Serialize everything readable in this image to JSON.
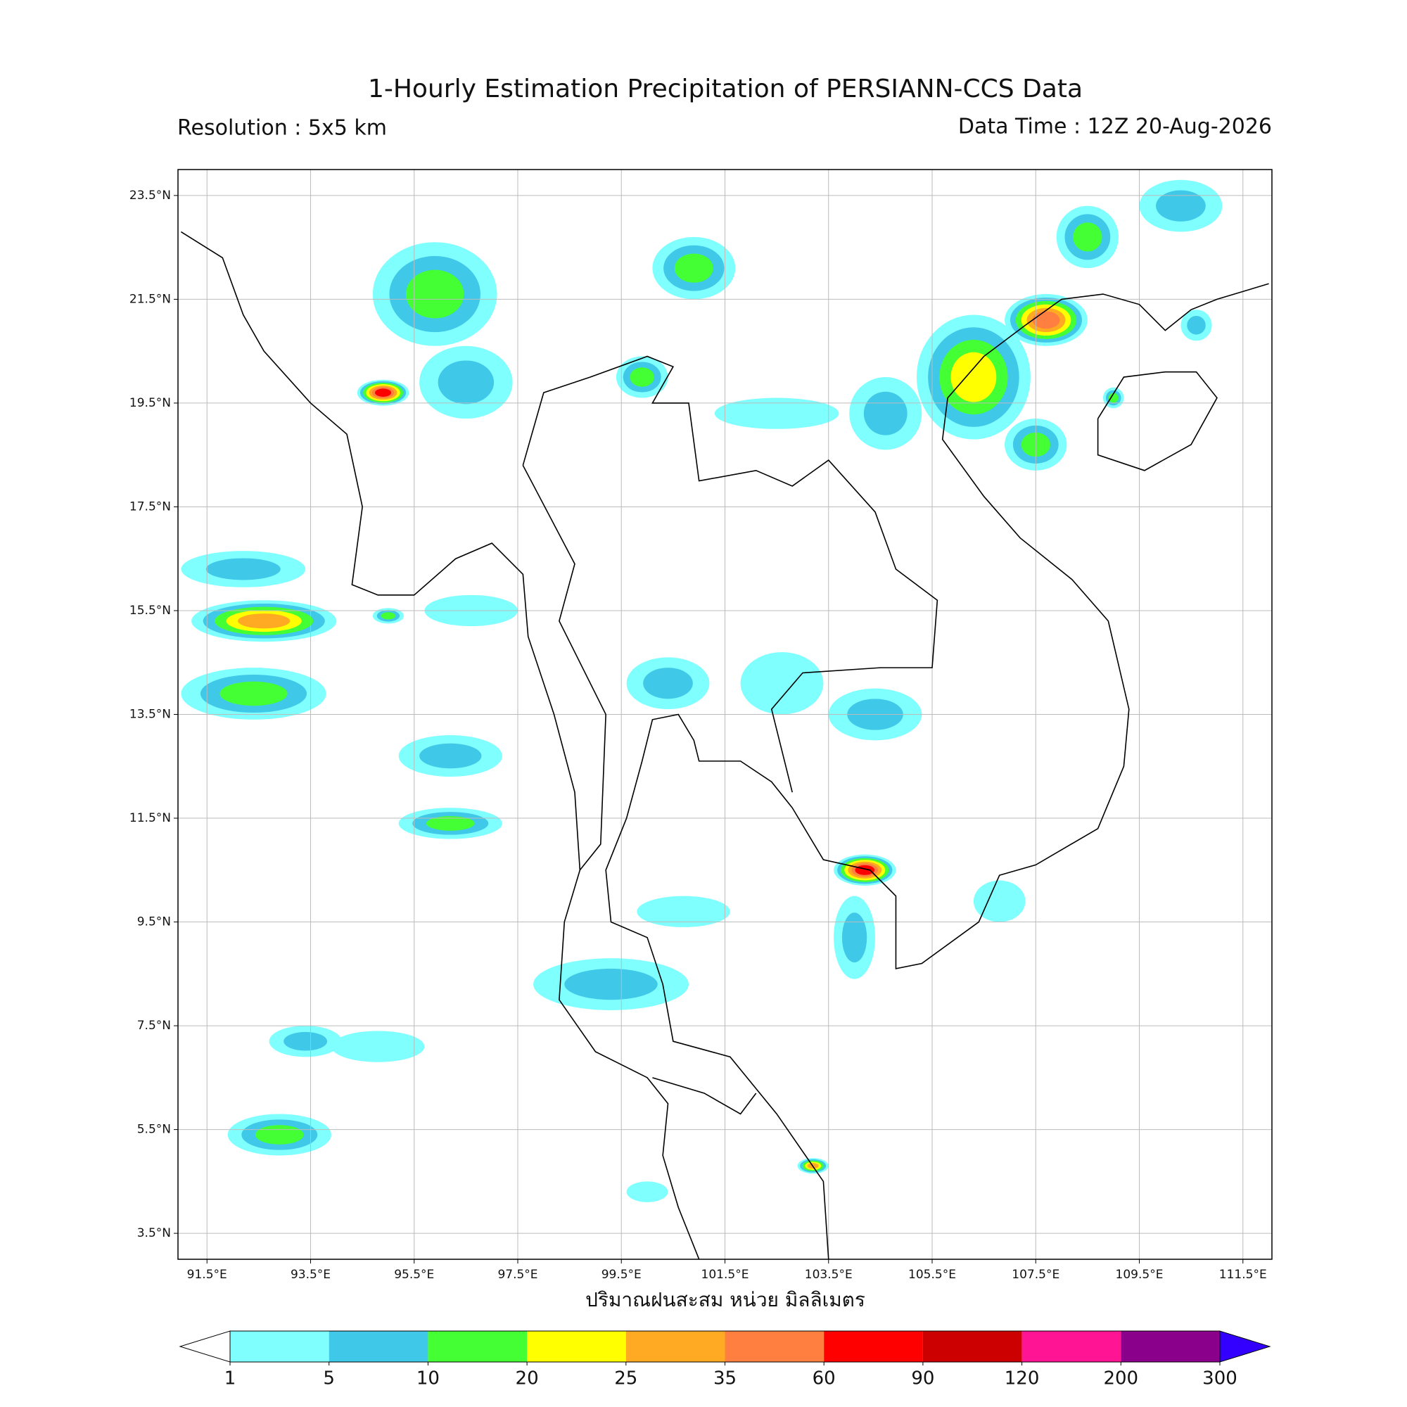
{
  "header": {
    "title": "1-Hourly Estimation Precipitation of PERSIANN-CCS Data",
    "resolution": "Resolution : 5x5 km",
    "data_time": "Data Time : 12Z 20-Aug-2026"
  },
  "map": {
    "xlim": [
      90.94,
      112.06
    ],
    "ylim": [
      3.0,
      24.0
    ],
    "grid": true,
    "xticks": [
      {
        "value": 91.5,
        "label": "91.5°E"
      },
      {
        "value": 93.5,
        "label": "93.5°E"
      },
      {
        "value": 95.5,
        "label": "95.5°E"
      },
      {
        "value": 97.5,
        "label": "97.5°E"
      },
      {
        "value": 99.5,
        "label": "99.5°E"
      },
      {
        "value": 101.5,
        "label": "101.5°E"
      },
      {
        "value": 103.5,
        "label": "103.5°E"
      },
      {
        "value": 105.5,
        "label": "105.5°E"
      },
      {
        "value": 107.5,
        "label": "107.5°E"
      },
      {
        "value": 109.5,
        "label": "109.5°E"
      },
      {
        "value": 111.5,
        "label": "111.5°E"
      }
    ],
    "yticks": [
      {
        "value": 3.5,
        "label": "3.5°N"
      },
      {
        "value": 5.5,
        "label": "5.5°N"
      },
      {
        "value": 7.5,
        "label": "7.5°N"
      },
      {
        "value": 9.5,
        "label": "9.5°N"
      },
      {
        "value": 11.5,
        "label": "11.5°N"
      },
      {
        "value": 13.5,
        "label": "13.5°N"
      },
      {
        "value": 15.5,
        "label": "15.5°N"
      },
      {
        "value": 17.5,
        "label": "17.5°N"
      },
      {
        "value": 19.5,
        "label": "19.5°N"
      },
      {
        "value": 21.5,
        "label": "21.5°N"
      },
      {
        "value": 23.5,
        "label": "23.5°N"
      }
    ]
  },
  "colorbar": {
    "label": "ปริมาณฝนสะสม หน่วย มิลลิเมตร",
    "levels": [
      1,
      5,
      10,
      20,
      25,
      35,
      60,
      90,
      120,
      200,
      300
    ],
    "colors": [
      "#80ffff",
      "#40c8e8",
      "#44ff33",
      "#ffff00",
      "#ffaa22",
      "#ff7f40",
      "#ff0000",
      "#cc0000",
      "#ff1493",
      "#8b008b"
    ],
    "under_color": "#ffffff",
    "over_color": "#3300ff"
  }
}
